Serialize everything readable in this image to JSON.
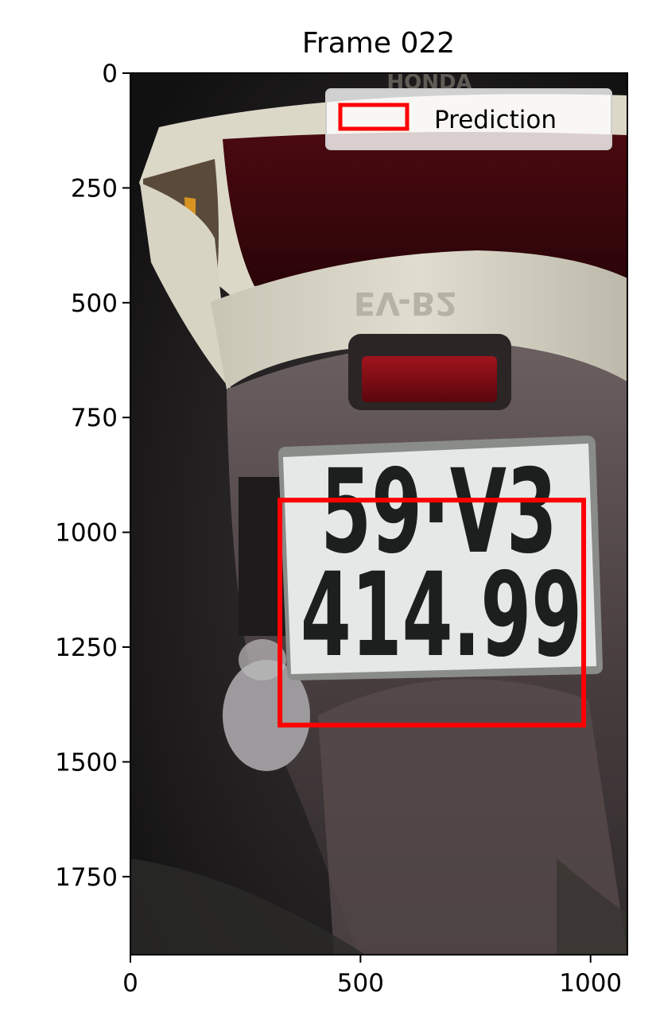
{
  "chart_data": {
    "type": "image",
    "title": "Frame 022",
    "xlabel": "",
    "ylabel": "",
    "xlim": [
      0,
      1080
    ],
    "ylim": [
      1920,
      0
    ],
    "xticks": [
      0,
      500,
      1000
    ],
    "xtick_labels": [
      "0",
      "500",
      "1000"
    ],
    "yticks": [
      0,
      250,
      500,
      750,
      1000,
      1250,
      1500,
      1750
    ],
    "ytick_labels": [
      "0",
      "250",
      "500",
      "750",
      "1000",
      "1250",
      "1500",
      "1750"
    ],
    "grid": false,
    "legend": {
      "placement": "top-right",
      "entries": [
        {
          "name": "Prediction",
          "color": "#ff0000",
          "marker": "rectangle-outline"
        }
      ]
    },
    "boxes": [
      {
        "series": "Prediction",
        "x_min": 325,
        "y_min": 930,
        "x_max": 985,
        "y_max": 1420,
        "color": "#ff0000"
      }
    ],
    "photo_text": {
      "plate_line1": "59·V3",
      "plate_line2": "414.99",
      "reflected_text": "EV-B2",
      "brand_text": "HONDA"
    }
  }
}
